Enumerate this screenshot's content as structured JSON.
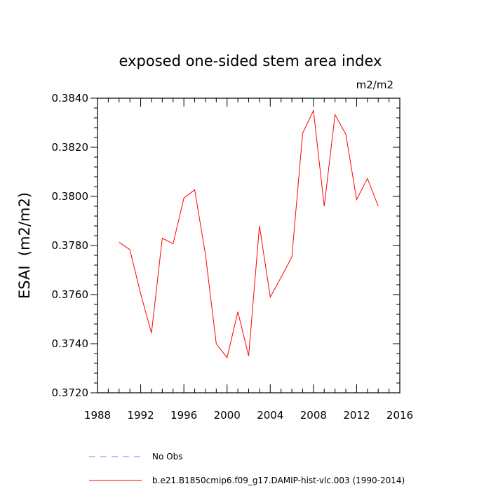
{
  "chart_data": {
    "type": "line",
    "title": "exposed one-sided stem area index",
    "units_label": "m2/m2",
    "ylabel": "ESAI  (m2/m2)",
    "xlabel": "",
    "xlim": [
      1988,
      2016
    ],
    "ylim": [
      0.372,
      0.384
    ],
    "x_ticks": [
      1988,
      1992,
      1996,
      2000,
      2004,
      2008,
      2012,
      2016
    ],
    "x_tick_labels": [
      "1988",
      "1992",
      "1996",
      "2000",
      "2004",
      "2008",
      "2012",
      "2016"
    ],
    "y_ticks": [
      0.372,
      0.374,
      0.376,
      0.378,
      0.38,
      0.382,
      0.384
    ],
    "y_tick_labels": [
      "0.3720",
      "0.3740",
      "0.3760",
      "0.3780",
      "0.3800",
      "0.3820",
      "0.3840"
    ],
    "grid": false,
    "series": [
      {
        "name": "b.e21.B1850cmip6.f09_g17.DAMIP-hist-vlc.003 (1990-2014)",
        "color": "#ff0000",
        "style": "solid",
        "x": [
          1990,
          1991,
          1992,
          1993,
          1994,
          1995,
          1996,
          1997,
          1998,
          1999,
          2000,
          2001,
          2002,
          2003,
          2004,
          2005,
          2006,
          2007,
          2008,
          2009,
          2010,
          2011,
          2012,
          2013,
          2014
        ],
        "values": [
          0.37813,
          0.37783,
          0.37603,
          0.37443,
          0.3783,
          0.37807,
          0.37993,
          0.38027,
          0.37763,
          0.374,
          0.37343,
          0.3753,
          0.3735,
          0.3788,
          0.3759,
          0.3767,
          0.37753,
          0.38257,
          0.3835,
          0.3796,
          0.38333,
          0.38253,
          0.37987,
          0.38073,
          0.3796
        ]
      }
    ],
    "legend": [
      {
        "label": "No Obs",
        "color": "#8080ff",
        "style": "dashed"
      },
      {
        "label": "b.e21.B1850cmip6.f09_g17.DAMIP-hist-vlc.003 (1990-2014)",
        "color": "#ff0000",
        "style": "solid"
      }
    ]
  }
}
